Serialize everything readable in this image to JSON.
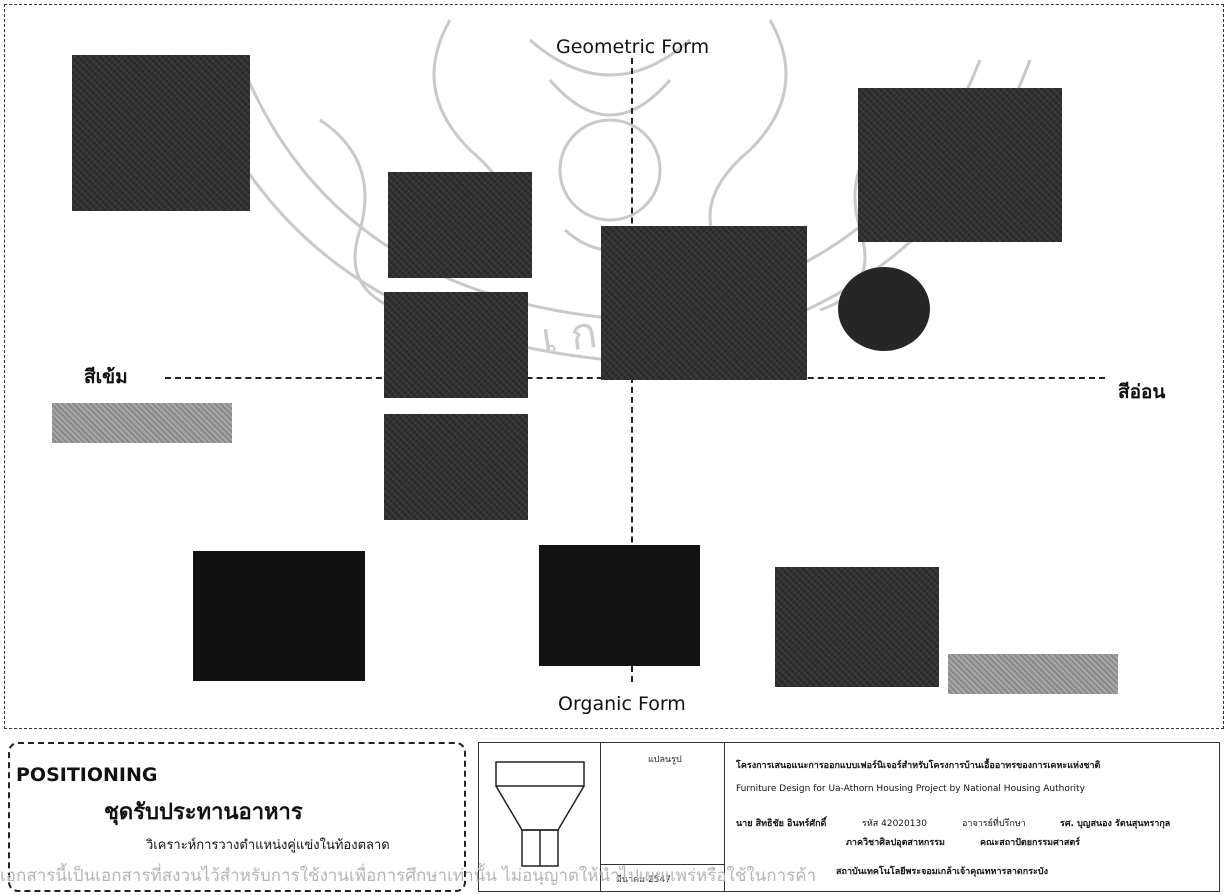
{
  "axes": {
    "top": "Geometric Form",
    "bottom": "Organic Form",
    "left": "สีเข้ม",
    "right": "สีอ่อน"
  },
  "positioning": {
    "title": "POSITIONING",
    "subtitle": "ชุดรับประทานอาหาร",
    "description": "วิเคราะห์การวางตำแหน่งคู่แข่งในท้องตลาด"
  },
  "title_block": {
    "sheet_label": "แปลนรูป",
    "sheet_caption": "มีนาคม 2547",
    "project_th": "โครงการเสนอแนะการออกแบบเฟอร์นิเจอร์สำหรับโครงการบ้านเอื้ออาทรของการเคหะแห่งชาติ",
    "project_en": "Furniture Design for Ua-Athorn Housing Project by National Housing Authority",
    "student": "นาย สิทธิชัย อินทร์ศักดิ์",
    "student_id": "รหัส 42020130",
    "advisor_label": "อาจารย์ที่ปรึกษา",
    "advisor": "รศ. บุญสนอง รัตนสุนทรากุล",
    "department": "ภาควิชาศิลปอุตสาหกรรม",
    "faculty": "คณะสถาปัตยกรรมศาสตร์",
    "institute": "สถาบันเทคโนโลยีพระจอมเกล้าเจ้าคุณทหารลาดกระบัง"
  },
  "watermark_footer": "เอกสารนี้เป็นเอกสารที่สงวนไว้สำหรับการใช้งานเพื่อการศึกษาเท่านั้น ไม่อนุญาตให้นำไปเผยแพร่หรือใช้ในการค้า"
}
